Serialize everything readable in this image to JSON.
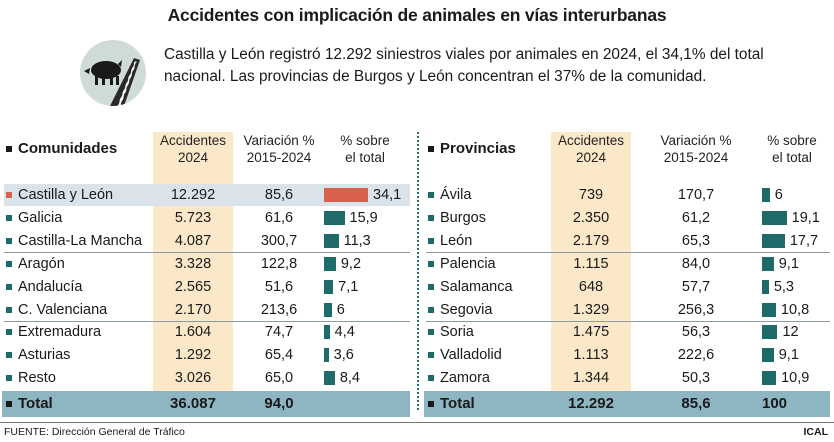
{
  "title": "Accidentes con implicación de animales en vías interurbanas",
  "intro": "Castilla y León registró 12.292 siniestros viales por animales en 2024, el 34,1% del total nacional. Las provincias de Burgos y León concentran el 37% de la comunidad.",
  "colors": {
    "teal": "#1f6b69",
    "highlight": "#d9604f",
    "accident_column": "#fbe8c8",
    "total_row": "#8eb5c2",
    "highlight_row": "#d9e3e9"
  },
  "logo_icon": "boar-crossing-road-icon",
  "comunidades": {
    "header": {
      "name": "Comunidades",
      "accidentes": "Accidentes\n2024",
      "variacion": "Variación %\n2015-2024",
      "porcentaje": "% sobre\nel total"
    },
    "rows": [
      {
        "name": "Castilla y León",
        "accidentes": "12.292",
        "variacion": "85,6",
        "porcentaje": "34,1",
        "value": 34.1,
        "highlight": true
      },
      {
        "name": "Galicia",
        "accidentes": "5.723",
        "variacion": "61,6",
        "porcentaje": "15,9",
        "value": 15.9
      },
      {
        "name": "Castilla-La Mancha",
        "accidentes": "4.087",
        "variacion": "300,7",
        "porcentaje": "11,3",
        "value": 11.3
      },
      {
        "name": "Aragón",
        "accidentes": "3.328",
        "variacion": "122,8",
        "porcentaje": "9,2",
        "value": 9.2
      },
      {
        "name": "Andalucía",
        "accidentes": "2.565",
        "variacion": "51,6",
        "porcentaje": "7,1",
        "value": 7.1
      },
      {
        "name": "C. Valenciana",
        "accidentes": "2.170",
        "variacion": "213,6",
        "porcentaje": "6",
        "value": 6
      },
      {
        "name": "Extremadura",
        "accidentes": "1.604",
        "variacion": "74,7",
        "porcentaje": "4,4",
        "value": 4.4
      },
      {
        "name": "Asturias",
        "accidentes": "1.292",
        "variacion": "65,4",
        "porcentaje": "3,6",
        "value": 3.6
      },
      {
        "name": "Resto",
        "accidentes": "3.026",
        "variacion": "65,0",
        "porcentaje": "8,4",
        "value": 8.4
      }
    ],
    "total": {
      "name": "Total",
      "accidentes": "36.087",
      "variacion": "94,0",
      "porcentaje": ""
    }
  },
  "provincias": {
    "header": {
      "name": "Provincias",
      "accidentes": "Accidentes\n2024",
      "variacion": "Variación %\n2015-2024",
      "porcentaje": "% sobre\nel total"
    },
    "rows": [
      {
        "name": "Ávila",
        "accidentes": "739",
        "variacion": "170,7",
        "porcentaje": "6",
        "value": 6
      },
      {
        "name": "Burgos",
        "accidentes": "2.350",
        "variacion": "61,2",
        "porcentaje": "19,1",
        "value": 19.1
      },
      {
        "name": "León",
        "accidentes": "2.179",
        "variacion": "65,3",
        "porcentaje": "17,7",
        "value": 17.7
      },
      {
        "name": "Palencia",
        "accidentes": "1.115",
        "variacion": "84,0",
        "porcentaje": "9,1",
        "value": 9.1
      },
      {
        "name": "Salamanca",
        "accidentes": "648",
        "variacion": "57,7",
        "porcentaje": "5,3",
        "value": 5.3
      },
      {
        "name": "Segovia",
        "accidentes": "1.329",
        "variacion": "256,3",
        "porcentaje": "10,8",
        "value": 10.8
      },
      {
        "name": "Soria",
        "accidentes": "1.475",
        "variacion": "56,3",
        "porcentaje": "12",
        "value": 12
      },
      {
        "name": "Valladolid",
        "accidentes": "1.113",
        "variacion": "222,6",
        "porcentaje": "9,1",
        "value": 9.1
      },
      {
        "name": "Zamora",
        "accidentes": "1.344",
        "variacion": "50,3",
        "porcentaje": "10,9",
        "value": 10.9
      }
    ],
    "total": {
      "name": "Total",
      "accidentes": "12.292",
      "variacion": "85,6",
      "porcentaje": "100"
    }
  },
  "footer": {
    "source": "FUENTE: Dirección General de Tráfico",
    "credit": "ICAL"
  }
}
